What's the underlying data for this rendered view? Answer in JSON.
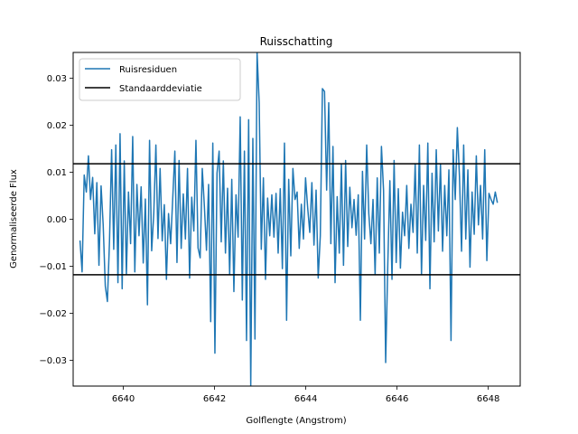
{
  "chart_data": {
    "type": "line",
    "title": "Ruisschatting",
    "xlabel": "Golflengte (Angstrom)",
    "ylabel": "Genormaliseerde Flux",
    "xlim": [
      6638.9,
      6648.7
    ],
    "ylim": [
      -0.0355,
      0.0355
    ],
    "xticks": [
      6640,
      6642,
      6644,
      6646,
      6648
    ],
    "xtick_labels": [
      "6640",
      "6642",
      "6644",
      "6646",
      "6648"
    ],
    "yticks": [
      -0.03,
      -0.02,
      -0.01,
      0.0,
      0.01,
      0.02,
      0.03
    ],
    "ytick_labels": [
      "−0.03",
      "−0.02",
      "−0.01",
      "0.00",
      "0.01",
      "0.02",
      "0.03"
    ],
    "legend_position": "upper left",
    "grid": false,
    "series": [
      {
        "name": "Ruisresiduen",
        "color": "#1f77b4",
        "x_start": 6639.05,
        "x_end": 6648.2,
        "values": [
          -0.0045,
          -0.0112,
          0.0094,
          0.0058,
          0.0135,
          0.0042,
          0.0089,
          -0.0031,
          0.0078,
          -0.0098,
          0.0071,
          -0.0012,
          -0.0142,
          -0.0175,
          -0.0046,
          0.0148,
          -0.0064,
          0.0158,
          -0.0135,
          0.0182,
          -0.0148,
          0.0124,
          -0.0118,
          0.0058,
          -0.0052,
          0.0176,
          -0.0112,
          0.0074,
          -0.0035,
          0.0069,
          -0.0093,
          0.0043,
          -0.0182,
          0.0168,
          -0.0067,
          0.0012,
          0.0158,
          -0.0041,
          0.0108,
          -0.0046,
          0.0031,
          -0.0128,
          0.0012,
          -0.0052,
          0.0045,
          0.0145,
          -0.0092,
          0.0125,
          -0.0062,
          0.0054,
          -0.0042,
          0.0108,
          -0.0125,
          0.0047,
          -0.0025,
          0.0168,
          -0.0061,
          -0.0082,
          0.0108,
          0.0028,
          -0.0066,
          0.0074,
          -0.0218,
          0.0162,
          -0.0285,
          0.0098,
          0.0145,
          -0.0048,
          0.0124,
          -0.0072,
          0.0066,
          -0.0118,
          0.0085,
          -0.0154,
          0.0052,
          -0.0038,
          0.0218,
          -0.0172,
          0.0145,
          -0.0258,
          0.0212,
          -0.0355,
          0.0172,
          -0.0255,
          0.0355,
          0.0248,
          -0.0064,
          0.0088,
          -0.0128,
          0.0045,
          -0.0035,
          0.0052,
          -0.0038,
          0.0055,
          -0.0072,
          0.0065,
          -0.0105,
          0.0162,
          -0.0215,
          0.0085,
          -0.0078,
          0.0108,
          0.0042,
          0.0058,
          -0.0062,
          0.0032,
          -0.0042,
          0.0088,
          0.0025,
          -0.0028,
          0.0078,
          -0.0055,
          0.0062,
          -0.0125,
          -0.0035,
          0.0278,
          0.0272,
          0.0062,
          0.0248,
          -0.0052,
          0.0155,
          -0.0135,
          0.0048,
          -0.0072,
          0.0118,
          -0.0098,
          0.0125,
          -0.0058,
          0.0068,
          -0.0018,
          0.0042,
          -0.0034,
          0.0052,
          -0.0215,
          0.0102,
          -0.0042,
          0.0158,
          0.0012,
          -0.0052,
          0.0042,
          -0.0118,
          0.0088,
          -0.0072,
          0.0155,
          0.0062,
          -0.0305,
          -0.0098,
          0.0082,
          -0.0128,
          0.0125,
          -0.0092,
          0.0065,
          -0.0104,
          0.0015,
          -0.0035,
          0.0072,
          -0.0062,
          0.0032,
          -0.0028,
          0.0118,
          -0.0072,
          0.0158,
          -0.0118,
          0.0072,
          -0.0045,
          0.0162,
          -0.0148,
          0.0098,
          -0.0048,
          0.0148,
          -0.0025,
          0.0118,
          -0.0068,
          0.0072,
          -0.0035,
          0.0105,
          -0.0258,
          0.0148,
          0.0042,
          0.0195,
          0.0092,
          -0.0068,
          0.0158,
          -0.0042,
          0.0105,
          -0.0102,
          0.0058,
          -0.0032,
          0.0135,
          -0.0012,
          0.0072,
          -0.0042,
          0.0148,
          -0.0088,
          0.0055,
          0.0042,
          0.0032,
          0.0058,
          0.0035
        ]
      },
      {
        "name": "Standaarddeviatie",
        "color": "#000000",
        "levels": [
          0.0118,
          -0.0118
        ]
      }
    ]
  }
}
